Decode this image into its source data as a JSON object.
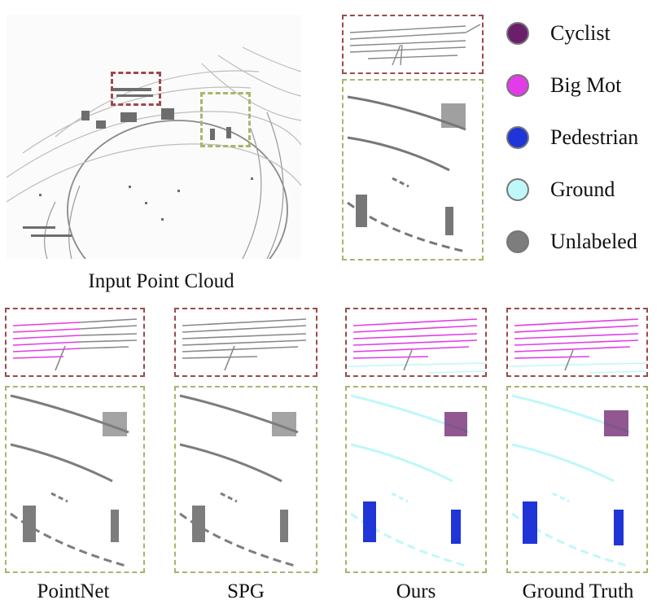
{
  "legend": {
    "items": [
      {
        "label": "Cyclist",
        "color": "#6b1f6b"
      },
      {
        "label": "Big Mot",
        "color": "#e33be8"
      },
      {
        "label": "Pedestrian",
        "color": "#1f35d8"
      },
      {
        "label": "Ground",
        "color": "#bff8f8"
      },
      {
        "label": "Unlabeled",
        "color": "#7d7d7d"
      }
    ]
  },
  "captions": {
    "input": "Input Point Cloud",
    "pointnet": "PointNet",
    "spg": "SPG",
    "ours": "Ours",
    "gt": "Ground Truth"
  },
  "colors": {
    "unlabeled": "#7d7d7d",
    "bigmot": "#e33be8",
    "ground": "#bff8f8",
    "pedestrian": "#1f35d8",
    "cyclist": "#6b1f6b",
    "red_box": "#9c4a4a",
    "green_box": "#a9b56b"
  }
}
